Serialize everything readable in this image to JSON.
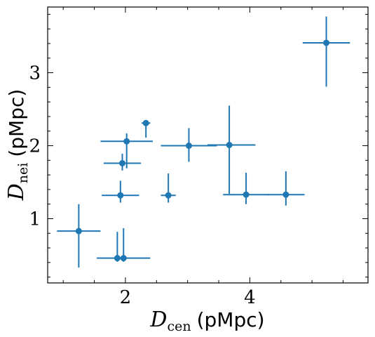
{
  "chart_data": {
    "type": "scatter",
    "xlabel": {
      "symbol": "D",
      "sub": "cen",
      "unit": "(pMpc)"
    },
    "ylabel": {
      "symbol": "D",
      "sub": "nei",
      "unit": "(pMpc)"
    },
    "xlim": [
      0.75,
      5.9
    ],
    "ylim": [
      0.12,
      3.9
    ],
    "xticks": [
      2,
      4
    ],
    "yticks": [
      1,
      2,
      3
    ],
    "grid": false,
    "color": "#1f77b4",
    "points": [
      {
        "x": 1.25,
        "y": 0.83,
        "xerr": [
          0.35,
          0.35
        ],
        "yerr": [
          0.5,
          0.37
        ]
      },
      {
        "x": 1.87,
        "y": 0.46,
        "xerr": [
          0.0,
          0.0
        ],
        "yerr": [
          0.05,
          0.36
        ]
      },
      {
        "x": 1.97,
        "y": 0.46,
        "xerr": [
          0.43,
          0.43
        ],
        "yerr": [
          0.05,
          0.41
        ]
      },
      {
        "x": 1.92,
        "y": 1.32,
        "xerr": [
          0.3,
          0.3
        ],
        "yerr": [
          0.1,
          0.2
        ]
      },
      {
        "x": 1.95,
        "y": 1.76,
        "xerr": [
          0.3,
          0.3
        ],
        "yerr": [
          0.1,
          0.13
        ]
      },
      {
        "x": 2.02,
        "y": 2.06,
        "xerr": [
          0.42,
          0.42
        ],
        "yerr": [
          0.37,
          0.11
        ]
      },
      {
        "x": 2.33,
        "y": 2.31,
        "xerr": [
          0.07,
          0.07
        ],
        "yerr": [
          0.2,
          0.0
        ]
      },
      {
        "x": 2.69,
        "y": 1.32,
        "xerr": [
          0.12,
          0.12
        ],
        "yerr": [
          0.1,
          0.3
        ]
      },
      {
        "x": 3.02,
        "y": 2.0,
        "xerr": [
          0.45,
          0.45
        ],
        "yerr": [
          0.22,
          0.24
        ]
      },
      {
        "x": 3.67,
        "y": 2.01,
        "xerr": [
          0.35,
          0.42
        ],
        "yerr": [
          0.67,
          0.54
        ]
      },
      {
        "x": 3.94,
        "y": 1.33,
        "xerr": [
          0.37,
          0.37
        ],
        "yerr": [
          0.13,
          0.3
        ]
      },
      {
        "x": 4.58,
        "y": 1.33,
        "xerr": [
          0.3,
          0.3
        ],
        "yerr": [
          0.15,
          0.32
        ]
      },
      {
        "x": 5.23,
        "y": 3.41,
        "xerr": [
          0.38,
          0.38
        ],
        "yerr": [
          0.6,
          0.36
        ]
      }
    ]
  }
}
